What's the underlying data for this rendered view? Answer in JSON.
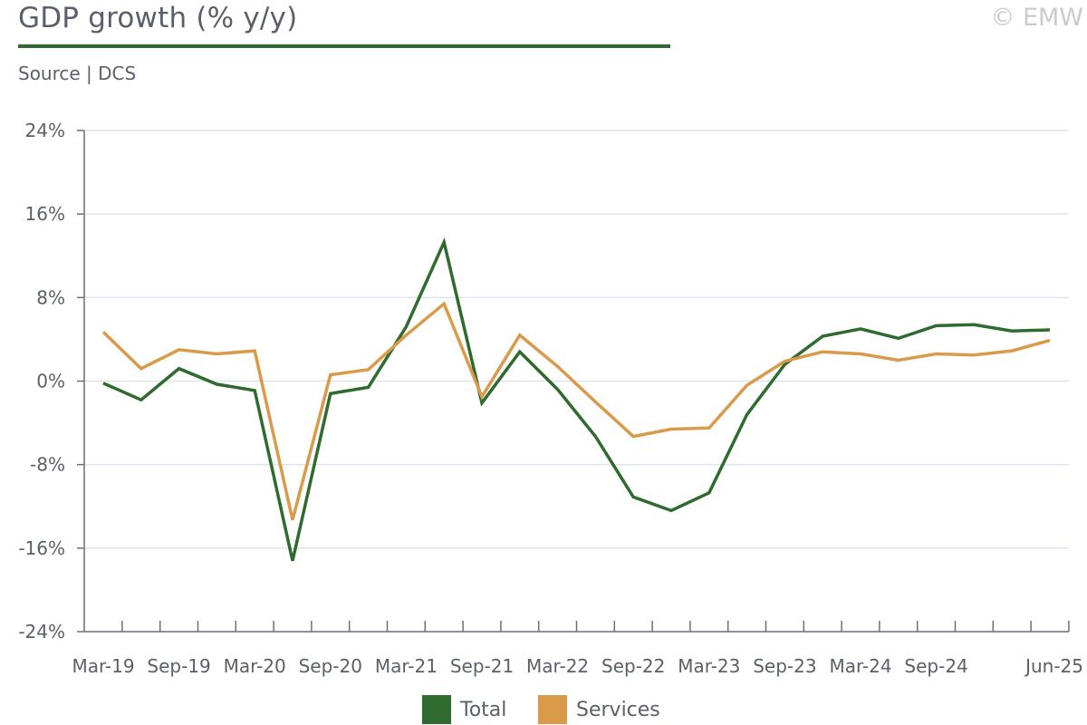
{
  "header": {
    "title": "GDP growth (% y/y)",
    "source": "Source | DCS",
    "copyright": "© EMW"
  },
  "colors": {
    "total": "#2f6b2f",
    "services": "#d99b4a",
    "axis": "#6b6f7a",
    "grid": "#dde4ee"
  },
  "legend": {
    "total_label": "Total",
    "services_label": "Services"
  },
  "chart_data": {
    "type": "line",
    "title": "GDP growth (% y/y)",
    "xlabel": "",
    "ylabel": "",
    "ylim": [
      -24,
      24
    ],
    "yticks": [
      24,
      16,
      8,
      0,
      -8,
      -16,
      -24
    ],
    "ytick_labels": [
      "24%",
      "16%",
      "8%",
      "0%",
      "-8%",
      "-16%",
      "-24%"
    ],
    "grid": true,
    "legend_position": "bottom",
    "x": [
      "Mar-19",
      "Jun-19",
      "Sep-19",
      "Dec-19",
      "Mar-20",
      "Jun-20",
      "Sep-20",
      "Dec-20",
      "Mar-21",
      "Jun-21",
      "Sep-21",
      "Dec-21",
      "Mar-22",
      "Jun-22",
      "Sep-22",
      "Dec-22",
      "Mar-23",
      "Jun-23",
      "Sep-23",
      "Dec-23",
      "Mar-24",
      "Jun-24",
      "Sep-24",
      "Dec-24",
      "Mar-25",
      "Jun-25"
    ],
    "x_tick_labels": [
      {
        "index": 0,
        "label": "Mar-19"
      },
      {
        "index": 2,
        "label": "Sep-19"
      },
      {
        "index": 4,
        "label": "Mar-20"
      },
      {
        "index": 6,
        "label": "Sep-20"
      },
      {
        "index": 8,
        "label": "Mar-21"
      },
      {
        "index": 10,
        "label": "Sep-21"
      },
      {
        "index": 12,
        "label": "Mar-22"
      },
      {
        "index": 14,
        "label": "Sep-22"
      },
      {
        "index": 16,
        "label": "Mar-23"
      },
      {
        "index": 18,
        "label": "Sep-23"
      },
      {
        "index": 20,
        "label": "Mar-24"
      },
      {
        "index": 22,
        "label": "Sep-24"
      },
      {
        "index": 25,
        "label": "Jun-25"
      }
    ],
    "series": [
      {
        "name": "Total",
        "color": "#2f6b2f",
        "values": [
          -0.2,
          -1.8,
          1.2,
          -0.3,
          -0.9,
          -17.2,
          -1.2,
          -0.6,
          5.2,
          13.3,
          -2.1,
          2.8,
          -0.8,
          -5.3,
          -11.1,
          -12.4,
          -10.7,
          -3.2,
          1.6,
          4.3,
          5.0,
          4.1,
          5.3,
          5.4,
          4.8,
          4.9
        ]
      },
      {
        "name": "Services",
        "color": "#d99b4a",
        "values": [
          4.7,
          1.2,
          3.0,
          2.6,
          2.9,
          -13.3,
          0.6,
          1.1,
          4.4,
          7.4,
          -1.5,
          4.4,
          1.4,
          -2.0,
          -5.3,
          -4.6,
          -4.5,
          -0.4,
          1.9,
          2.8,
          2.6,
          2.0,
          2.6,
          2.5,
          2.9,
          3.9
        ]
      }
    ]
  }
}
